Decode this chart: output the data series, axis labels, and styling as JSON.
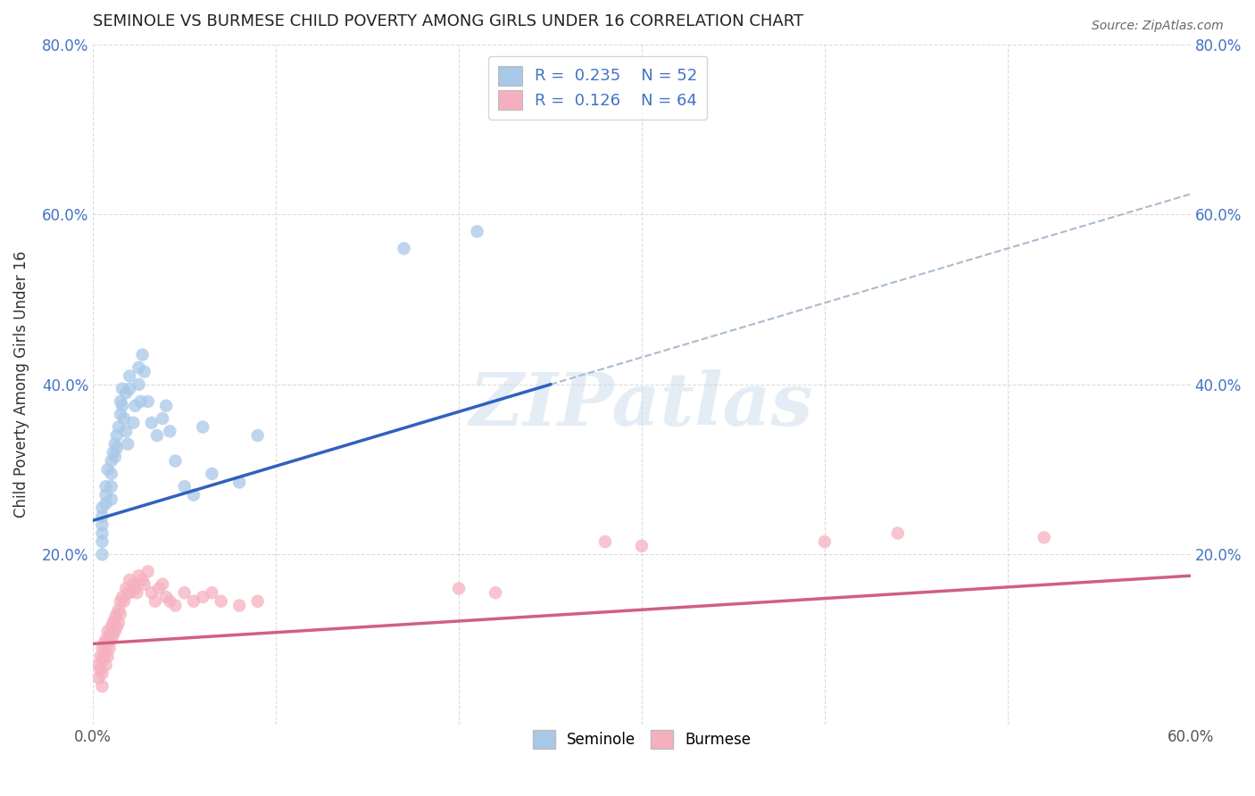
{
  "title": "SEMINOLE VS BURMESE CHILD POVERTY AMONG GIRLS UNDER 16 CORRELATION CHART",
  "source": "Source: ZipAtlas.com",
  "ylabel": "Child Poverty Among Girls Under 16",
  "watermark": "ZIPatlas",
  "xlim": [
    0.0,
    0.6
  ],
  "ylim": [
    0.0,
    0.8
  ],
  "seminole_R": 0.235,
  "seminole_N": 52,
  "burmese_R": 0.126,
  "burmese_N": 64,
  "seminole_color": "#a8c8e8",
  "burmese_color": "#f5b0c0",
  "trend_seminole_color": "#3060c0",
  "trend_burmese_color": "#d06080",
  "dash_color": "#aabbcc",
  "seminole_x": [
    0.005,
    0.005,
    0.005,
    0.005,
    0.005,
    0.005,
    0.007,
    0.007,
    0.007,
    0.008,
    0.01,
    0.01,
    0.01,
    0.01,
    0.011,
    0.012,
    0.012,
    0.013,
    0.013,
    0.014,
    0.015,
    0.015,
    0.016,
    0.016,
    0.017,
    0.018,
    0.018,
    0.019,
    0.02,
    0.02,
    0.022,
    0.023,
    0.025,
    0.025,
    0.026,
    0.027,
    0.028,
    0.03,
    0.032,
    0.035,
    0.038,
    0.04,
    0.042,
    0.045,
    0.05,
    0.055,
    0.06,
    0.065,
    0.08,
    0.09,
    0.17,
    0.21
  ],
  "seminole_y": [
    0.255,
    0.245,
    0.235,
    0.225,
    0.215,
    0.2,
    0.28,
    0.27,
    0.26,
    0.3,
    0.31,
    0.295,
    0.28,
    0.265,
    0.32,
    0.33,
    0.315,
    0.34,
    0.325,
    0.35,
    0.38,
    0.365,
    0.395,
    0.375,
    0.36,
    0.39,
    0.345,
    0.33,
    0.41,
    0.395,
    0.355,
    0.375,
    0.42,
    0.4,
    0.38,
    0.435,
    0.415,
    0.38,
    0.355,
    0.34,
    0.36,
    0.375,
    0.345,
    0.31,
    0.28,
    0.27,
    0.35,
    0.295,
    0.285,
    0.34,
    0.56,
    0.58
  ],
  "burmese_x": [
    0.003,
    0.003,
    0.004,
    0.004,
    0.005,
    0.005,
    0.005,
    0.005,
    0.006,
    0.006,
    0.007,
    0.007,
    0.007,
    0.008,
    0.008,
    0.008,
    0.009,
    0.009,
    0.01,
    0.01,
    0.011,
    0.011,
    0.012,
    0.012,
    0.013,
    0.013,
    0.014,
    0.014,
    0.015,
    0.015,
    0.016,
    0.017,
    0.018,
    0.019,
    0.02,
    0.02,
    0.022,
    0.023,
    0.024,
    0.025,
    0.027,
    0.028,
    0.03,
    0.032,
    0.034,
    0.036,
    0.038,
    0.04,
    0.042,
    0.045,
    0.05,
    0.055,
    0.06,
    0.065,
    0.07,
    0.08,
    0.09,
    0.2,
    0.22,
    0.28,
    0.3,
    0.4,
    0.44,
    0.52
  ],
  "burmese_y": [
    0.07,
    0.055,
    0.08,
    0.065,
    0.09,
    0.075,
    0.06,
    0.045,
    0.095,
    0.08,
    0.1,
    0.085,
    0.07,
    0.11,
    0.095,
    0.08,
    0.105,
    0.09,
    0.115,
    0.1,
    0.12,
    0.105,
    0.125,
    0.11,
    0.13,
    0.115,
    0.135,
    0.12,
    0.145,
    0.13,
    0.15,
    0.145,
    0.16,
    0.155,
    0.17,
    0.155,
    0.165,
    0.16,
    0.155,
    0.175,
    0.17,
    0.165,
    0.18,
    0.155,
    0.145,
    0.16,
    0.165,
    0.15,
    0.145,
    0.14,
    0.155,
    0.145,
    0.15,
    0.155,
    0.145,
    0.14,
    0.145,
    0.16,
    0.155,
    0.215,
    0.21,
    0.215,
    0.225,
    0.22
  ],
  "background_color": "#ffffff",
  "grid_color": "#cccccc",
  "sem_trend_x0": 0.0,
  "sem_trend_y0": 0.24,
  "sem_trend_x1": 0.25,
  "sem_trend_y1": 0.4,
  "bur_trend_x0": 0.0,
  "bur_trend_y0": 0.095,
  "bur_trend_x1": 0.6,
  "bur_trend_y1": 0.175
}
